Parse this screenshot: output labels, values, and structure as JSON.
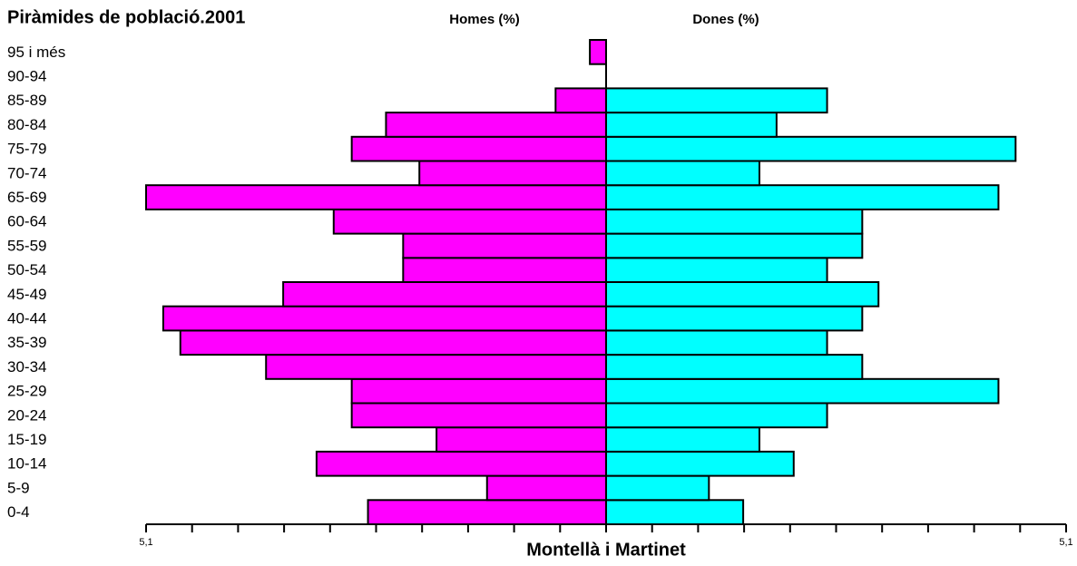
{
  "chart_data": {
    "type": "pyramid",
    "title": "Piràmides de població.2001",
    "xlabel": "Montellà i Martinet",
    "categories": [
      "0-4",
      "5-9",
      "10-14",
      "15-19",
      "20-24",
      "25-29",
      "30-34",
      "35-39",
      "40-44",
      "45-49",
      "50-54",
      "55-59",
      "60-64",
      "65-69",
      "70-74",
      "75-79",
      "80-84",
      "85-89",
      "90-94",
      "95 i més"
    ],
    "series": [
      {
        "name": "Homes (%)",
        "color": "#ff00ff",
        "side": "left",
        "values": [
          2.64,
          1.32,
          3.21,
          1.88,
          2.82,
          2.82,
          3.77,
          4.72,
          4.91,
          3.58,
          2.25,
          2.25,
          3.02,
          5.1,
          2.07,
          2.82,
          2.44,
          0.56,
          0,
          0.18
        ]
      },
      {
        "name": "Dones (%)",
        "color": "#00ffff",
        "side": "right",
        "values": [
          1.52,
          1.14,
          2.08,
          1.7,
          2.45,
          4.35,
          2.84,
          2.45,
          2.84,
          3.02,
          2.45,
          2.84,
          2.84,
          4.35,
          1.7,
          4.54,
          1.89,
          2.45,
          0,
          0
        ]
      }
    ],
    "xlim": [
      0,
      5.1
    ],
    "xticks": [
      {
        "value": 5.1,
        "label": "5,1"
      }
    ],
    "xminor_ticks": [
      0,
      0.51,
      1.02,
      1.53,
      2.04,
      2.55,
      3.06,
      3.57,
      4.08,
      4.59
    ]
  }
}
